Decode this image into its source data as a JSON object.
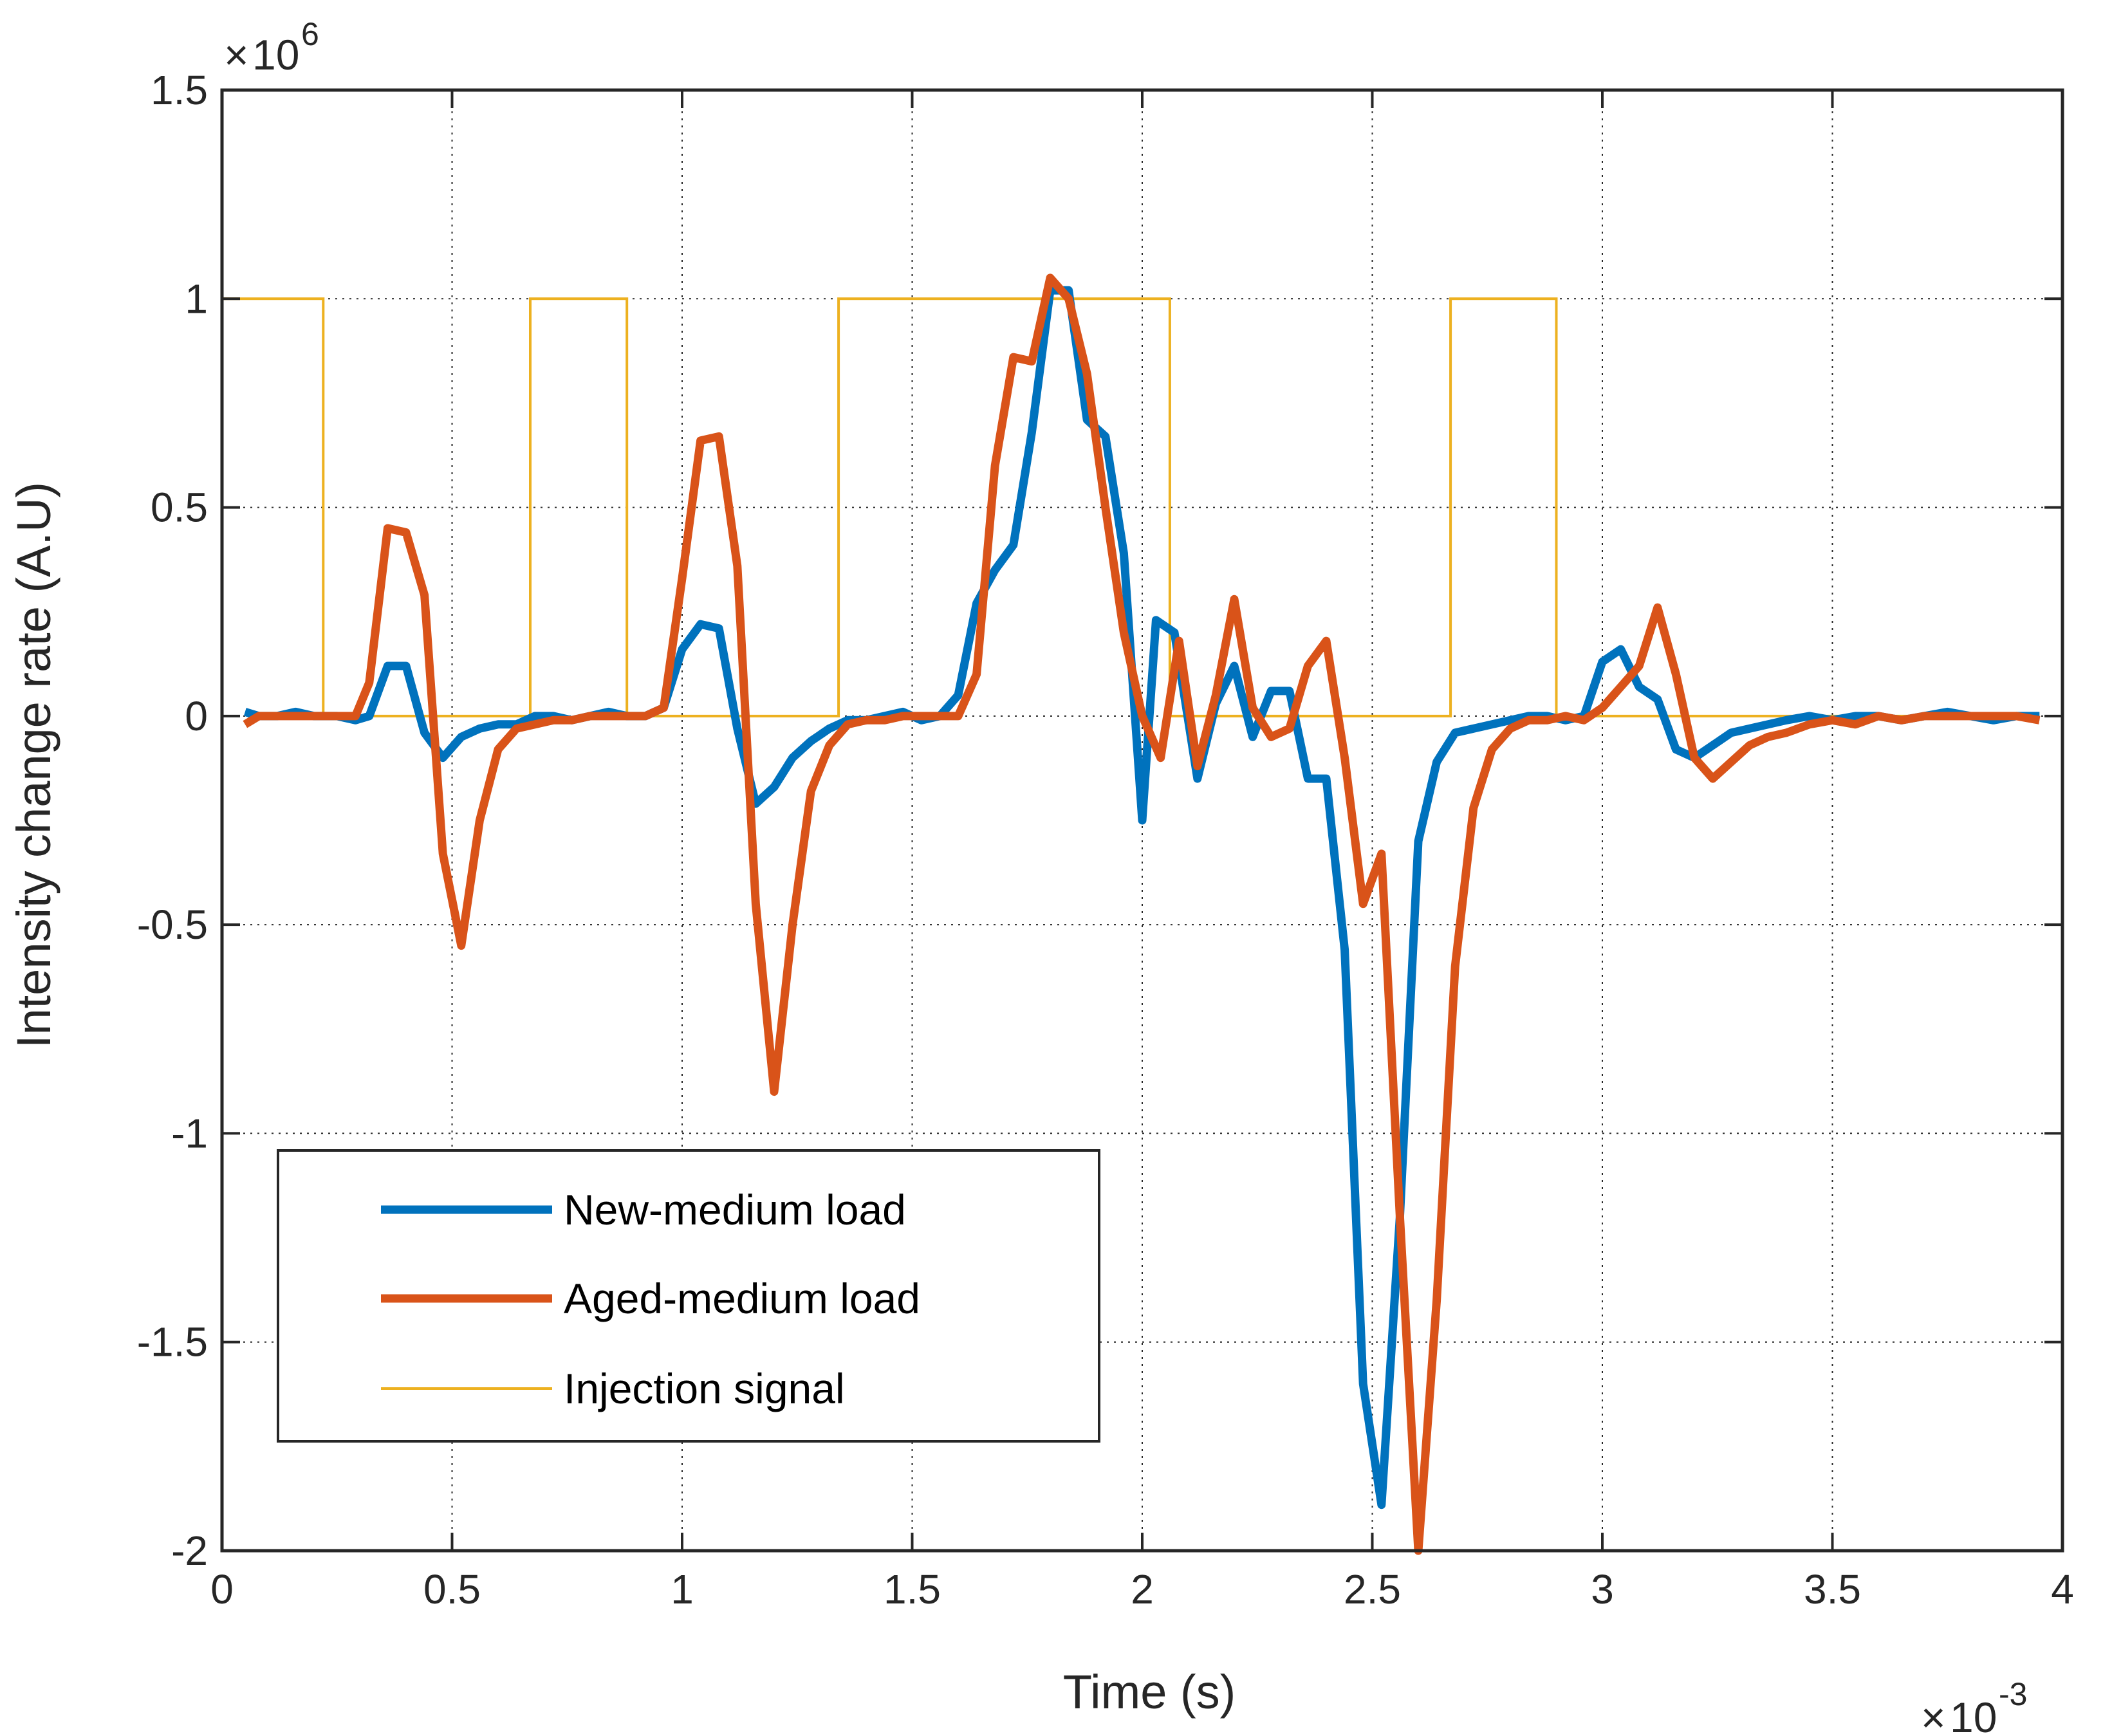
{
  "chart_data": {
    "type": "line",
    "xlabel": "Time (s)",
    "ylabel": "Intensity change rate (A.U)",
    "x_multiplier": "10",
    "x_multiplier_exp": "-3",
    "y_multiplier": "10",
    "y_multiplier_exp": "6",
    "xlim": [
      0,
      4
    ],
    "ylim": [
      -2,
      1.5
    ],
    "xticks": [
      0,
      0.5,
      1,
      1.5,
      2,
      2.5,
      3,
      3.5,
      4
    ],
    "xtick_labels": [
      "0",
      "0.5",
      "1",
      "1.5",
      "2",
      "2.5",
      "3",
      "3.5",
      "4"
    ],
    "yticks": [
      -2,
      -1.5,
      -1,
      -0.5,
      0,
      0.5,
      1,
      1.5
    ],
    "ytick_labels": [
      "-2",
      "-1.5",
      "-1",
      "-0.5",
      "0",
      "0.5",
      "1",
      "1.5"
    ],
    "grid": true,
    "legend_position": "bottom-left",
    "series": [
      {
        "name": "New-medium load",
        "color": "#0072BD",
        "width": "thick",
        "points": [
          [
            0.05,
            0.01
          ],
          [
            0.08,
            0
          ],
          [
            0.12,
            0
          ],
          [
            0.16,
            0.01
          ],
          [
            0.2,
            0
          ],
          [
            0.25,
            0
          ],
          [
            0.29,
            -0.01
          ],
          [
            0.32,
            0
          ],
          [
            0.36,
            0.12
          ],
          [
            0.4,
            0.12
          ],
          [
            0.44,
            -0.04
          ],
          [
            0.48,
            -0.1
          ],
          [
            0.52,
            -0.05
          ],
          [
            0.56,
            -0.03
          ],
          [
            0.6,
            -0.02
          ],
          [
            0.64,
            -0.02
          ],
          [
            0.68,
            0
          ],
          [
            0.72,
            0
          ],
          [
            0.76,
            -0.01
          ],
          [
            0.8,
            0
          ],
          [
            0.84,
            0.01
          ],
          [
            0.88,
            0
          ],
          [
            0.92,
            0
          ],
          [
            0.96,
            0.02
          ],
          [
            1,
            0.16
          ],
          [
            1.04,
            0.22
          ],
          [
            1.08,
            0.21
          ],
          [
            1.12,
            -0.03
          ],
          [
            1.16,
            -0.21
          ],
          [
            1.2,
            -0.17
          ],
          [
            1.24,
            -0.1
          ],
          [
            1.28,
            -0.06
          ],
          [
            1.32,
            -0.03
          ],
          [
            1.36,
            -0.01
          ],
          [
            1.4,
            -0.01
          ],
          [
            1.44,
            0
          ],
          [
            1.48,
            0.01
          ],
          [
            1.52,
            -0.01
          ],
          [
            1.56,
            0
          ],
          [
            1.6,
            0.05
          ],
          [
            1.64,
            0.27
          ],
          [
            1.68,
            0.35
          ],
          [
            1.72,
            0.41
          ],
          [
            1.76,
            0.68
          ],
          [
            1.8,
            1.02
          ],
          [
            1.84,
            1.02
          ],
          [
            1.88,
            0.71
          ],
          [
            1.92,
            0.67
          ],
          [
            1.96,
            0.39
          ],
          [
            2,
            -0.25
          ],
          [
            2.03,
            0.23
          ],
          [
            2.07,
            0.2
          ],
          [
            2.12,
            -0.15
          ],
          [
            2.16,
            0.03
          ],
          [
            2.2,
            0.12
          ],
          [
            2.24,
            -0.05
          ],
          [
            2.28,
            0.06
          ],
          [
            2.32,
            0.06
          ],
          [
            2.36,
            -0.15
          ],
          [
            2.4,
            -0.15
          ],
          [
            2.44,
            -0.56
          ],
          [
            2.48,
            -1.6
          ],
          [
            2.52,
            -1.89
          ],
          [
            2.56,
            -1.2
          ],
          [
            2.6,
            -0.3
          ],
          [
            2.64,
            -0.11
          ],
          [
            2.68,
            -0.04
          ],
          [
            2.72,
            -0.03
          ],
          [
            2.76,
            -0.02
          ],
          [
            2.8,
            -0.01
          ],
          [
            2.84,
            0
          ],
          [
            2.88,
            0
          ],
          [
            2.92,
            -0.01
          ],
          [
            2.96,
            0
          ],
          [
            3,
            0.13
          ],
          [
            3.04,
            0.16
          ],
          [
            3.08,
            0.07
          ],
          [
            3.12,
            0.04
          ],
          [
            3.16,
            -0.08
          ],
          [
            3.2,
            -0.1
          ],
          [
            3.24,
            -0.07
          ],
          [
            3.28,
            -0.04
          ],
          [
            3.32,
            -0.03
          ],
          [
            3.36,
            -0.02
          ],
          [
            3.4,
            -0.01
          ],
          [
            3.45,
            0
          ],
          [
            3.5,
            -0.01
          ],
          [
            3.55,
            0
          ],
          [
            3.6,
            0
          ],
          [
            3.65,
            -0.01
          ],
          [
            3.7,
            0
          ],
          [
            3.75,
            0.01
          ],
          [
            3.8,
            0
          ],
          [
            3.85,
            -0.01
          ],
          [
            3.9,
            0
          ],
          [
            3.95,
            0
          ]
        ]
      },
      {
        "name": "Aged-medium load",
        "color": "#D95319",
        "width": "thick",
        "points": [
          [
            0.05,
            -0.02
          ],
          [
            0.08,
            0
          ],
          [
            0.12,
            0
          ],
          [
            0.16,
            0
          ],
          [
            0.2,
            0
          ],
          [
            0.25,
            0
          ],
          [
            0.29,
            0
          ],
          [
            0.32,
            0.08
          ],
          [
            0.36,
            0.45
          ],
          [
            0.4,
            0.44
          ],
          [
            0.44,
            0.29
          ],
          [
            0.48,
            -0.33
          ],
          [
            0.52,
            -0.55
          ],
          [
            0.56,
            -0.25
          ],
          [
            0.6,
            -0.08
          ],
          [
            0.64,
            -0.03
          ],
          [
            0.68,
            -0.02
          ],
          [
            0.72,
            -0.01
          ],
          [
            0.76,
            -0.01
          ],
          [
            0.8,
            0
          ],
          [
            0.84,
            0
          ],
          [
            0.88,
            0
          ],
          [
            0.92,
            0
          ],
          [
            0.96,
            0.02
          ],
          [
            1,
            0.33
          ],
          [
            1.04,
            0.66
          ],
          [
            1.08,
            0.67
          ],
          [
            1.12,
            0.36
          ],
          [
            1.16,
            -0.45
          ],
          [
            1.2,
            -0.9
          ],
          [
            1.24,
            -0.5
          ],
          [
            1.28,
            -0.18
          ],
          [
            1.32,
            -0.07
          ],
          [
            1.36,
            -0.02
          ],
          [
            1.4,
            -0.01
          ],
          [
            1.44,
            -0.01
          ],
          [
            1.48,
            0
          ],
          [
            1.52,
            0
          ],
          [
            1.56,
            0
          ],
          [
            1.6,
            0
          ],
          [
            1.64,
            0.1
          ],
          [
            1.68,
            0.6
          ],
          [
            1.72,
            0.86
          ],
          [
            1.76,
            0.85
          ],
          [
            1.8,
            1.05
          ],
          [
            1.84,
            1
          ],
          [
            1.88,
            0.82
          ],
          [
            1.92,
            0.5
          ],
          [
            1.96,
            0.2
          ],
          [
            2,
            0
          ],
          [
            2.04,
            -0.1
          ],
          [
            2.08,
            0.18
          ],
          [
            2.12,
            -0.12
          ],
          [
            2.16,
            0.05
          ],
          [
            2.2,
            0.28
          ],
          [
            2.24,
            0.02
          ],
          [
            2.28,
            -0.05
          ],
          [
            2.32,
            -0.03
          ],
          [
            2.36,
            0.12
          ],
          [
            2.4,
            0.18
          ],
          [
            2.44,
            -0.1
          ],
          [
            2.48,
            -0.45
          ],
          [
            2.52,
            -0.33
          ],
          [
            2.56,
            -1.2
          ],
          [
            2.6,
            -2.0
          ],
          [
            2.64,
            -1.4
          ],
          [
            2.68,
            -0.6
          ],
          [
            2.72,
            -0.22
          ],
          [
            2.76,
            -0.08
          ],
          [
            2.8,
            -0.03
          ],
          [
            2.84,
            -0.01
          ],
          [
            2.88,
            -0.01
          ],
          [
            2.92,
            0
          ],
          [
            2.96,
            -0.01
          ],
          [
            3,
            0.02
          ],
          [
            3.04,
            0.07
          ],
          [
            3.08,
            0.12
          ],
          [
            3.12,
            0.26
          ],
          [
            3.16,
            0.1
          ],
          [
            3.2,
            -0.1
          ],
          [
            3.24,
            -0.15
          ],
          [
            3.28,
            -0.11
          ],
          [
            3.32,
            -0.07
          ],
          [
            3.36,
            -0.05
          ],
          [
            3.4,
            -0.04
          ],
          [
            3.45,
            -0.02
          ],
          [
            3.5,
            -0.01
          ],
          [
            3.55,
            -0.02
          ],
          [
            3.6,
            0
          ],
          [
            3.65,
            -0.01
          ],
          [
            3.7,
            0
          ],
          [
            3.75,
            0
          ],
          [
            3.8,
            0
          ],
          [
            3.85,
            0
          ],
          [
            3.9,
            0
          ],
          [
            3.95,
            -0.01
          ]
        ]
      },
      {
        "name": "Injection signal",
        "color": "#EDB120",
        "width": "thin",
        "points": [
          [
            0,
            1
          ],
          [
            0.22,
            1
          ],
          [
            0.22,
            0
          ],
          [
            0.67,
            0
          ],
          [
            0.67,
            1
          ],
          [
            0.88,
            1
          ],
          [
            0.88,
            0
          ],
          [
            1.34,
            0
          ],
          [
            1.34,
            1
          ],
          [
            2.06,
            1
          ],
          [
            2.06,
            0
          ],
          [
            2.67,
            0
          ],
          [
            2.67,
            1
          ],
          [
            2.9,
            1
          ],
          [
            2.9,
            0
          ],
          [
            3.95,
            0
          ]
        ]
      }
    ]
  }
}
